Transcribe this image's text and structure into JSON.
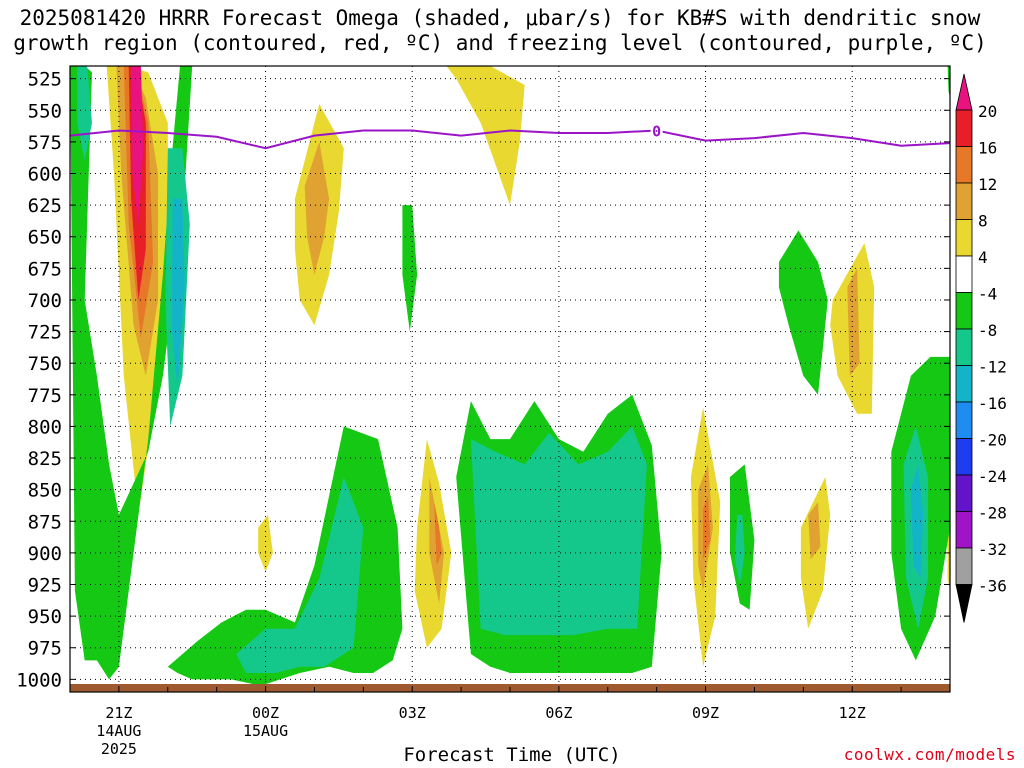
{
  "title": {
    "line1": "2025081420 HRRR Forecast Omega (shaded, μbar/s) for KB#S with dendritic snow",
    "line2": "growth region (contoured, red, ºC) and freezing level (contoured, purple, ºC)"
  },
  "xlabel": "Forecast Time (UTC)",
  "credit": "coolwx.com/models",
  "chart_data": {
    "type": "heatmap",
    "title": "2025081420 HRRR Forecast Omega (shaded, μbar/s) for KB#S with dendritic snow growth region (contoured, red, ºC) and freezing level (contoured, purple, ºC)",
    "xlabel": "Forecast Time (UTC)",
    "ylabel": "",
    "y_ticks": [
      525,
      550,
      575,
      600,
      625,
      650,
      675,
      700,
      725,
      750,
      775,
      800,
      825,
      850,
      875,
      900,
      925,
      950,
      975,
      1000
    ],
    "ylim": [
      1010,
      515
    ],
    "x_ticks": [
      {
        "hour": 1,
        "lines": [
          "21Z",
          "14AUG",
          "2025"
        ]
      },
      {
        "hour": 4,
        "lines": [
          "00Z",
          "15AUG"
        ]
      },
      {
        "hour": 7,
        "lines": [
          "03Z"
        ]
      },
      {
        "hour": 10,
        "lines": [
          "06Z"
        ]
      },
      {
        "hour": 13,
        "lines": [
          "09Z"
        ]
      },
      {
        "hour": 16,
        "lines": [
          "12Z"
        ]
      }
    ],
    "xlim": [
      0,
      18
    ],
    "colorbar": {
      "labels": [
        20,
        16,
        12,
        8,
        4,
        -4,
        -8,
        -12,
        -16,
        -20,
        -24,
        -28,
        -32,
        -36
      ],
      "bins": [
        {
          "color": "#e8137e"
        },
        {
          "color": "#e81e28"
        },
        {
          "color": "#e67828"
        },
        {
          "color": "#e0a230"
        },
        {
          "color": "#e8d830"
        },
        {
          "color": "#ffffff"
        },
        {
          "color": "#14c814"
        },
        {
          "color": "#14c88c"
        },
        {
          "color": "#14b4c8"
        },
        {
          "color": "#1e8cf0"
        },
        {
          "color": "#1e3cf0"
        },
        {
          "color": "#6414c8"
        },
        {
          "color": "#a014c8"
        },
        {
          "color": "#a0a0a0"
        },
        {
          "color": "#000000"
        }
      ]
    },
    "freezing_level": {
      "label": "0",
      "color": "#9a14c8",
      "x": [
        0,
        1,
        2,
        3,
        4,
        5,
        6,
        7,
        8,
        9,
        10,
        11,
        12,
        13,
        14,
        15,
        16,
        17,
        18
      ],
      "y": [
        570,
        566,
        568,
        571,
        580,
        570,
        566,
        566,
        570,
        566,
        568,
        568,
        566,
        574,
        572,
        568,
        572,
        578,
        576
      ]
    },
    "omega_features": [
      {
        "kind": "positive",
        "level": 1,
        "x": [
          0.75,
          1.15,
          1.6,
          2.0,
          2.0,
          1.7,
          1.4,
          1.1,
          0.9
        ],
        "y": [
          515,
          515,
          520,
          560,
          680,
          790,
          870,
          760,
          600
        ]
      },
      {
        "kind": "positive",
        "level": 2,
        "x": [
          0.95,
          1.25,
          1.55,
          1.8,
          1.8,
          1.55,
          1.3,
          1.05
        ],
        "y": [
          515,
          515,
          540,
          600,
          700,
          760,
          720,
          600
        ]
      },
      {
        "kind": "positive",
        "level": 3,
        "x": [
          1.1,
          1.35,
          1.6,
          1.7,
          1.45,
          1.2
        ],
        "y": [
          515,
          515,
          560,
          670,
          730,
          640
        ]
      },
      {
        "kind": "positive",
        "level": 4,
        "x": [
          1.2,
          1.35,
          1.55,
          1.55,
          1.4,
          1.25
        ],
        "y": [
          515,
          515,
          560,
          660,
          700,
          620
        ]
      },
      {
        "kind": "positive",
        "level": 5,
        "x": [
          1.25,
          1.45,
          1.5,
          1.4,
          1.28
        ],
        "y": [
          515,
          515,
          580,
          640,
          600
        ]
      },
      {
        "kind": "positive",
        "level": 1,
        "x": [
          4.6,
          5.1,
          5.6,
          5.5,
          5.3,
          5.0,
          4.7,
          4.6
        ],
        "y": [
          620,
          545,
          580,
          630,
          680,
          720,
          700,
          660
        ]
      },
      {
        "kind": "positive",
        "level": 2,
        "x": [
          4.8,
          5.1,
          5.3,
          5.2,
          5.0,
          4.85
        ],
        "y": [
          610,
          575,
          620,
          650,
          680,
          650
        ]
      },
      {
        "kind": "positive",
        "level": 1,
        "x": [
          7.7,
          8.6,
          9.3,
          9.2,
          9.0,
          8.4,
          7.9
        ],
        "y": [
          515,
          515,
          530,
          575,
          625,
          560,
          525
        ]
      },
      {
        "kind": "positive",
        "level": 1,
        "x": [
          3.85,
          4.05,
          4.15,
          4.0,
          3.85
        ],
        "y": [
          880,
          870,
          900,
          915,
          900
        ]
      },
      {
        "kind": "positive",
        "level": 1,
        "x": [
          7.1,
          7.3,
          7.55,
          7.8,
          7.6,
          7.3,
          7.05
        ],
        "y": [
          880,
          810,
          845,
          900,
          960,
          975,
          930
        ]
      },
      {
        "kind": "positive",
        "level": 2,
        "x": [
          7.35,
          7.5,
          7.65,
          7.55,
          7.35
        ],
        "y": [
          840,
          870,
          900,
          940,
          900
        ]
      },
      {
        "kind": "positive",
        "level": 3,
        "x": [
          7.45,
          7.55,
          7.6,
          7.5
        ],
        "y": [
          860,
          880,
          900,
          910
        ]
      },
      {
        "kind": "positive",
        "level": 1,
        "x": [
          12.7,
          12.95,
          13.3,
          13.2,
          12.95,
          12.75
        ],
        "y": [
          840,
          785,
          860,
          950,
          990,
          920
        ]
      },
      {
        "kind": "positive",
        "level": 2,
        "x": [
          12.85,
          13.05,
          13.15,
          12.95,
          12.85
        ],
        "y": [
          850,
          830,
          880,
          930,
          910
        ]
      },
      {
        "kind": "positive",
        "level": 3,
        "x": [
          12.95,
          13.05,
          13.1,
          12.95
        ],
        "y": [
          865,
          855,
          890,
          905
        ]
      },
      {
        "kind": "positive",
        "level": 1,
        "x": [
          14.95,
          15.45,
          15.55,
          15.4,
          15.1,
          14.95
        ],
        "y": [
          880,
          840,
          870,
          930,
          960,
          920
        ]
      },
      {
        "kind": "positive",
        "level": 2,
        "x": [
          15.1,
          15.3,
          15.35,
          15.15
        ],
        "y": [
          870,
          860,
          895,
          905
        ]
      },
      {
        "kind": "positive",
        "level": 1,
        "x": [
          15.6,
          16.25,
          16.45,
          16.4,
          16.1,
          15.7,
          15.55
        ],
        "y": [
          700,
          655,
          690,
          790,
          790,
          760,
          720
        ]
      },
      {
        "kind": "positive",
        "level": 2,
        "x": [
          15.9,
          16.1,
          16.15,
          15.95
        ],
        "y": [
          690,
          675,
          750,
          760
        ]
      },
      {
        "kind": "positive",
        "level": 1,
        "x": [
          17.95,
          18,
          18,
          17.95
        ],
        "y": [
          885,
          880,
          930,
          920
        ]
      },
      {
        "kind": "negative",
        "level": 1,
        "x": [
          0.0,
          0.3,
          0.45,
          0.3,
          0.55,
          0.8,
          1.0,
          1.6,
          1.9,
          2.3,
          2.5,
          2.25,
          2.05,
          1.9,
          1.6,
          1.2,
          1.0,
          0.8,
          0.55,
          0.3,
          0.1
        ],
        "y": [
          515,
          515,
          520,
          700,
          760,
          830,
          870,
          820,
          760,
          640,
          515,
          515,
          600,
          680,
          810,
          930,
          990,
          1000,
          985,
          985,
          930
        ]
      },
      {
        "kind": "negative",
        "level": 2,
        "x": [
          0.15,
          0.35,
          0.45,
          0.3,
          0.15
        ],
        "y": [
          515,
          515,
          560,
          590,
          560
        ]
      },
      {
        "kind": "negative",
        "level": 2,
        "x": [
          2.0,
          2.3,
          2.45,
          2.3,
          2.05,
          1.95
        ],
        "y": [
          580,
          580,
          640,
          760,
          800,
          700
        ]
      },
      {
        "kind": "negative",
        "level": 3,
        "x": [
          2.1,
          2.3,
          2.35,
          2.2,
          2.08
        ],
        "y": [
          620,
          620,
          690,
          770,
          720
        ]
      },
      {
        "kind": "negative",
        "level": 1,
        "x": [
          2.0,
          2.6,
          3.1,
          3.6,
          4.0,
          4.6,
          5.0,
          5.6,
          6.3,
          6.7,
          6.8,
          6.6,
          6.2,
          5.8,
          5.3,
          4.7,
          4.3,
          3.9,
          3.3,
          2.9,
          2.5,
          2.2
        ],
        "y": [
          990,
          970,
          955,
          945,
          945,
          955,
          910,
          800,
          810,
          880,
          960,
          985,
          995,
          995,
          990,
          995,
          1000,
          1005,
          1000,
          1000,
          1000,
          995
        ]
      },
      {
        "kind": "negative",
        "level": 2,
        "x": [
          3.4,
          4.0,
          4.6,
          5.1,
          5.6,
          6.0,
          5.8,
          5.2,
          4.7,
          4.2,
          3.6
        ],
        "y": [
          980,
          960,
          960,
          920,
          840,
          880,
          975,
          990,
          990,
          995,
          995
        ]
      },
      {
        "kind": "negative",
        "level": 1,
        "x": [
          7.9,
          8.2,
          8.6,
          9.0,
          9.5,
          10.0,
          10.5,
          11.0,
          11.5,
          11.9,
          12.1,
          11.9,
          11.5,
          11.0,
          10.2,
          9.5,
          9.0,
          8.6,
          8.2
        ],
        "y": [
          840,
          780,
          810,
          810,
          780,
          810,
          820,
          790,
          775,
          815,
          900,
          990,
          995,
          995,
          995,
          995,
          995,
          990,
          980
        ]
      },
      {
        "kind": "negative",
        "level": 2,
        "x": [
          8.2,
          8.7,
          9.3,
          9.8,
          10.4,
          11.0,
          11.5,
          11.8,
          11.6,
          11.0,
          10.3,
          9.6,
          8.9,
          8.4
        ],
        "y": [
          810,
          820,
          830,
          805,
          830,
          820,
          800,
          830,
          960,
          960,
          965,
          965,
          965,
          960
        ]
      },
      {
        "kind": "negative",
        "level": 1,
        "x": [
          6.8,
          7.0,
          7.1,
          6.95,
          6.8
        ],
        "y": [
          625,
          625,
          680,
          725,
          680
        ]
      },
      {
        "kind": "negative",
        "level": 1,
        "x": [
          13.5,
          13.8,
          14.0,
          13.9,
          13.7,
          13.5
        ],
        "y": [
          840,
          830,
          890,
          945,
          940,
          900
        ]
      },
      {
        "kind": "negative",
        "level": 2,
        "x": [
          13.65,
          13.75,
          13.8,
          13.7,
          13.6
        ],
        "y": [
          870,
          870,
          900,
          925,
          905
        ]
      },
      {
        "kind": "negative",
        "level": 1,
        "x": [
          14.5,
          14.9,
          15.3,
          15.5,
          15.3,
          15.0,
          14.7,
          14.5
        ],
        "y": [
          670,
          645,
          670,
          700,
          775,
          760,
          720,
          690
        ]
      },
      {
        "kind": "negative",
        "level": 1,
        "x": [
          16.8,
          17.2,
          17.6,
          18.0,
          18.0,
          17.7,
          17.3,
          17.0,
          16.8
        ],
        "y": [
          820,
          760,
          745,
          745,
          880,
          950,
          985,
          960,
          900
        ]
      },
      {
        "kind": "negative",
        "level": 2,
        "x": [
          17.05,
          17.3,
          17.55,
          17.55,
          17.35,
          17.1
        ],
        "y": [
          830,
          800,
          840,
          920,
          960,
          920
        ]
      },
      {
        "kind": "negative",
        "level": 3,
        "x": [
          17.2,
          17.35,
          17.45,
          17.4,
          17.25
        ],
        "y": [
          850,
          830,
          870,
          920,
          910
        ]
      },
      {
        "kind": "negative",
        "level": 1,
        "x": [
          17.95,
          18,
          18,
          17.97
        ],
        "y": [
          515,
          515,
          540,
          535
        ]
      }
    ]
  }
}
